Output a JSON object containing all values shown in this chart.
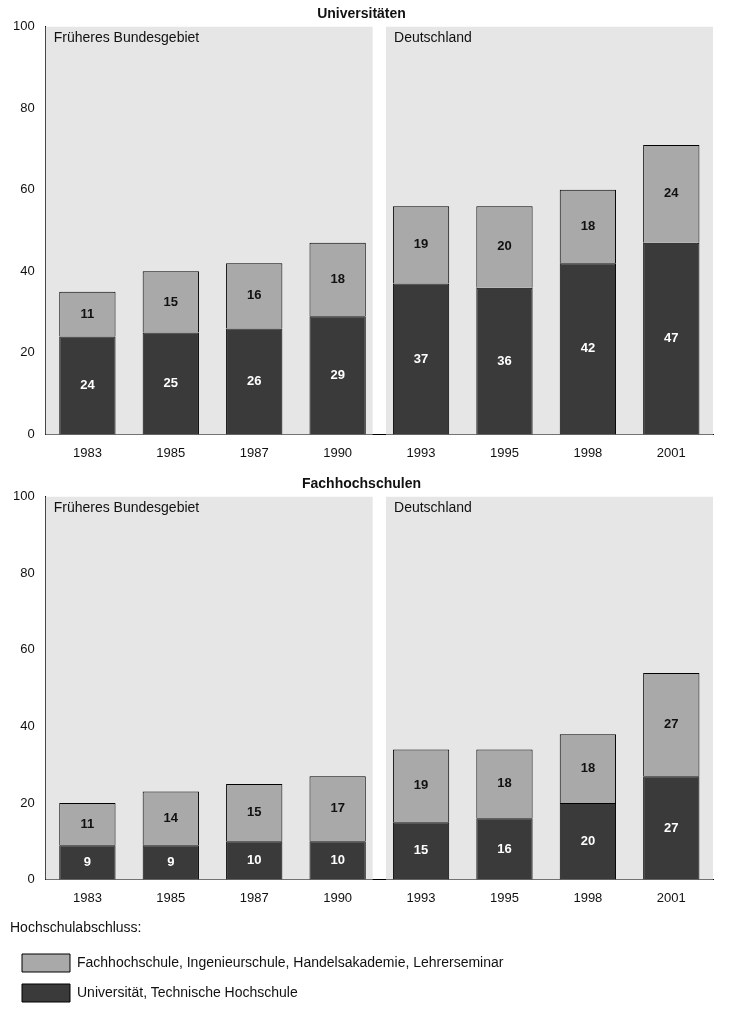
{
  "chart_data": [
    {
      "type": "bar",
      "title": "Universitäten",
      "categories": [
        "1983",
        "1985",
        "1987",
        "1990",
        "1993",
        "1995",
        "1998",
        "2001"
      ],
      "stacked": true,
      "data_labels": true,
      "grid": false,
      "legend": false,
      "series": [
        {
          "color": "#3a3a3a",
          "values": [
            24,
            25,
            26,
            29,
            37,
            36,
            42,
            47
          ]
        },
        {
          "color": "#a9a9a9",
          "values": [
            11,
            15,
            16,
            18,
            19,
            20,
            18,
            24
          ]
        }
      ],
      "ylim": [
        0,
        100
      ],
      "yticks": [
        0,
        20,
        40,
        60,
        80,
        100
      ],
      "bands": [
        {
          "axis": "x",
          "from": "1983",
          "to": "1990",
          "label": "Früheres Bundesgebiet",
          "color": "#e6e6e6"
        },
        {
          "axis": "x",
          "from": "1993",
          "to": "2001",
          "label": "Deutschland",
          "color": "#e6e6e6"
        }
      ]
    },
    {
      "type": "bar",
      "title": "Fachhochschulen",
      "categories": [
        "1983",
        "1985",
        "1987",
        "1990",
        "1993",
        "1995",
        "1998",
        "2001"
      ],
      "stacked": true,
      "data_labels": true,
      "grid": false,
      "legend": "bottom",
      "legend_title": "Hochschulabschluss:",
      "series": [
        {
          "name": "Universität, Technische Hochschule",
          "color": "#3a3a3a",
          "values": [
            9,
            9,
            10,
            10,
            15,
            16,
            20,
            27
          ]
        },
        {
          "name": "Fachhochschule, Ingenieurschule, Handelsakademie, Lehrerseminar",
          "color": "#a9a9a9",
          "values": [
            11,
            14,
            15,
            17,
            19,
            18,
            18,
            27
          ]
        }
      ],
      "ylim": [
        0,
        100
      ],
      "yticks": [
        0,
        20,
        40,
        60,
        80,
        100
      ],
      "bands": [
        {
          "axis": "x",
          "from": "1983",
          "to": "1990",
          "label": "Früheres Bundesgebiet",
          "color": "#e6e6e6"
        },
        {
          "axis": "x",
          "from": "1993",
          "to": "2001",
          "label": "Deutschland",
          "color": "#e6e6e6"
        }
      ]
    }
  ]
}
